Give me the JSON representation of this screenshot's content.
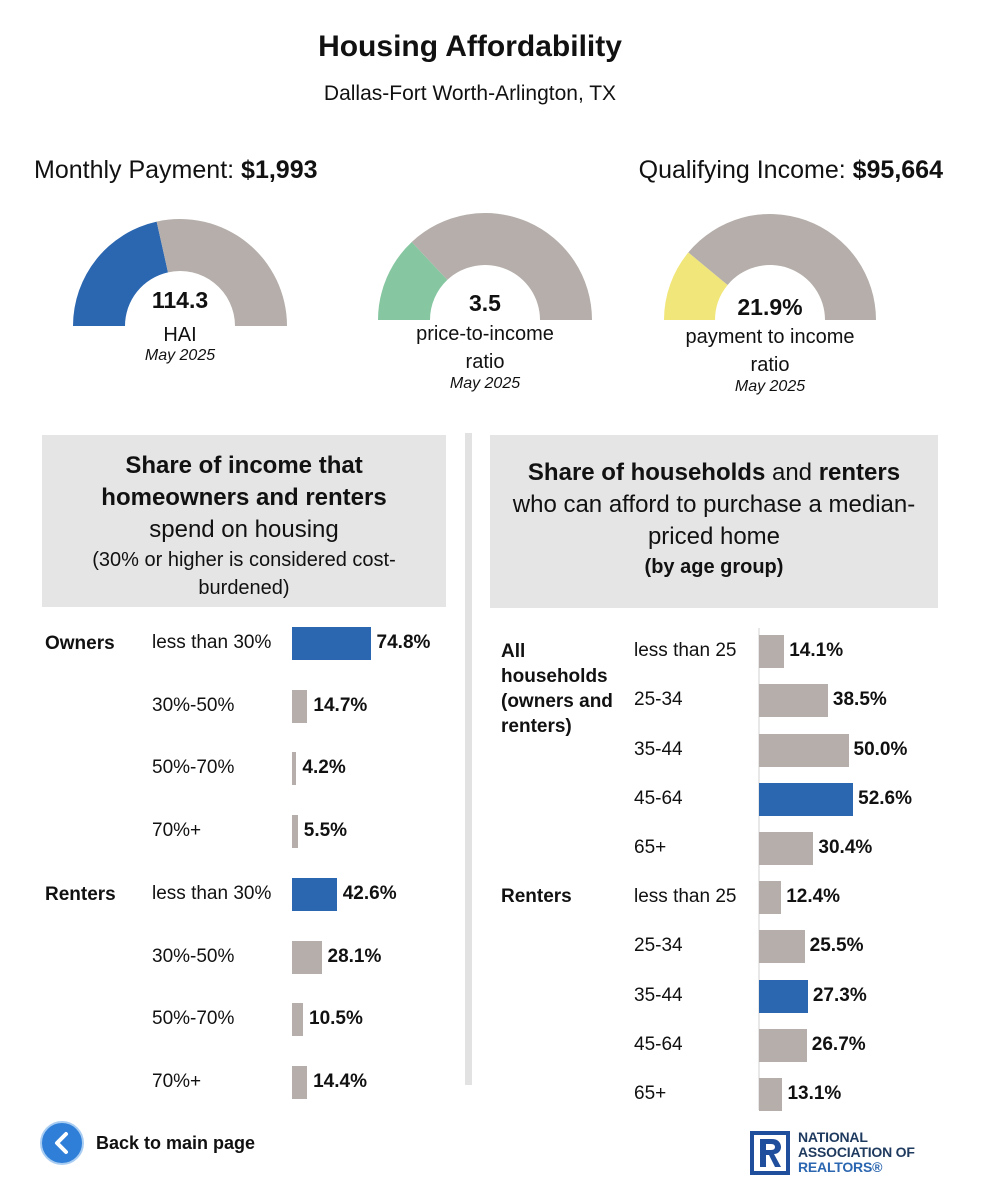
{
  "header": {
    "title": "Housing Affordability",
    "subtitle": "Dallas-Fort Worth-Arlington, TX"
  },
  "kpis": {
    "monthly_payment_label": "Monthly Payment:",
    "monthly_payment_value": "$1,993",
    "qualifying_income_label": "Qualifying Income:",
    "qualifying_income_value": "$95,664"
  },
  "gauges": [
    {
      "value": "114.3",
      "label": "HAI",
      "date": "May 2025",
      "fill_fraction": 0.43,
      "fill_color": "#2b66b0"
    },
    {
      "value": "3.5",
      "label": "price-to-income ratio",
      "date": "May 2025",
      "fill_fraction": 0.26,
      "fill_color": "#86c6a1"
    },
    {
      "value": "21.9%",
      "label": "payment to income ratio",
      "date": "May 2025",
      "fill_fraction": 0.22,
      "fill_color": "#f1e67a"
    }
  ],
  "left_panel": {
    "heading_bold": "Share of income that homeowners and renters",
    "heading_regular": "spend on housing",
    "note": "(30% or higher is considered cost-burdened)"
  },
  "right_panel": {
    "heading_bold1": "Share of households",
    "heading_reg1": "and",
    "heading_bold2": "renters",
    "heading_reg2": "who can afford to purchase a median-priced home",
    "heading_sub": "(by age group)"
  },
  "footer": {
    "back_label": "Back to main page",
    "logo_line1": "NATIONAL",
    "logo_line2": "ASSOCIATION OF",
    "logo_line3": "REALTORS®"
  },
  "colors": {
    "gray": "#b5aeaa",
    "blue": "#2b66b0",
    "gauge_gray": "#b5aeaa"
  },
  "chart_data": [
    {
      "type": "bar",
      "title": "Share of income that homeowners and renters spend on housing",
      "groups": [
        {
          "name": "Owners",
          "categories": [
            "less than 30%",
            "30%-50%",
            "50%-70%",
            "70%+"
          ],
          "values": [
            74.8,
            14.7,
            4.2,
            5.5
          ],
          "labels": [
            "74.8%",
            "14.7%",
            "4.2%",
            "5.5%"
          ],
          "highlight": [
            true,
            false,
            false,
            false
          ]
        },
        {
          "name": "Renters",
          "categories": [
            "less than 30%",
            "30%-50%",
            "50%-70%",
            "70%+"
          ],
          "values": [
            42.6,
            28.1,
            10.5,
            14.4
          ],
          "labels": [
            "42.6%",
            "28.1%",
            "10.5%",
            "14.4%"
          ],
          "highlight": [
            true,
            false,
            false,
            false
          ]
        }
      ]
    },
    {
      "type": "bar",
      "title": "Share of households and renters who can afford to purchase a median-priced home (by age group)",
      "groups": [
        {
          "name": "All households (owners and renters)",
          "categories": [
            "less than 25",
            "25-34",
            "35-44",
            "45-64",
            "65+"
          ],
          "values": [
            14.1,
            38.5,
            50.0,
            52.6,
            30.4
          ],
          "labels": [
            "14.1%",
            "38.5%",
            "50.0%",
            "52.6%",
            "30.4%"
          ],
          "highlight": [
            false,
            false,
            false,
            true,
            false
          ]
        },
        {
          "name": "Renters",
          "categories": [
            "less than 25",
            "25-34",
            "35-44",
            "45-64",
            "65+"
          ],
          "values": [
            12.4,
            25.5,
            27.3,
            26.7,
            13.1
          ],
          "labels": [
            "12.4%",
            "25.5%",
            "27.3%",
            "26.7%",
            "13.1%"
          ],
          "highlight": [
            false,
            false,
            true,
            false,
            false
          ]
        }
      ]
    }
  ]
}
